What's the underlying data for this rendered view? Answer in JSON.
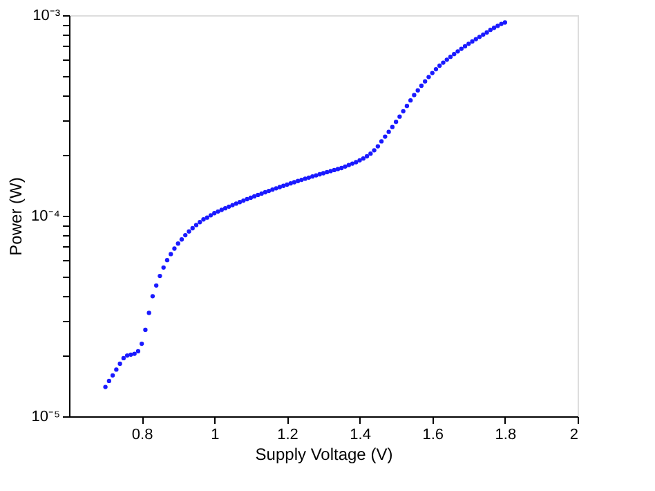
{
  "chart_data": {
    "type": "scatter",
    "xlabel": "Supply Voltage (V)",
    "ylabel": "Power (W)",
    "log": "y",
    "grid": false,
    "marker": "circle",
    "xlim": [
      0.6,
      2
    ],
    "xticks": [
      0.8,
      1,
      1.2,
      1.4,
      1.6,
      1.8,
      2
    ],
    "ylim": [
      1e-05,
      0.001
    ],
    "yticks": [
      {
        "value": 1e-05,
        "label": "10⁻⁵"
      },
      {
        "value": 2e-05,
        "label": null
      },
      {
        "value": 3e-05,
        "label": null
      },
      {
        "value": 4e-05,
        "label": null
      },
      {
        "value": 5e-05,
        "label": null
      },
      {
        "value": 6e-05,
        "label": null
      },
      {
        "value": 7e-05,
        "label": null
      },
      {
        "value": 8e-05,
        "label": null
      },
      {
        "value": 9e-05,
        "label": null
      },
      {
        "value": 0.0001,
        "label": "10⁻⁴"
      },
      {
        "value": 0.0002,
        "label": null
      },
      {
        "value": 0.0003,
        "label": null
      },
      {
        "value": 0.0004,
        "label": null
      },
      {
        "value": 0.0005,
        "label": null
      },
      {
        "value": 0.0006,
        "label": null
      },
      {
        "value": 0.0007,
        "label": null
      },
      {
        "value": 0.0008,
        "label": null
      },
      {
        "value": 0.0009,
        "label": null
      },
      {
        "value": 0.001,
        "label": "10⁻³"
      }
    ],
    "x": [
      0.7,
      0.71,
      0.72,
      0.73,
      0.74,
      0.75,
      0.76,
      0.77,
      0.78,
      0.79,
      0.8,
      0.81,
      0.82,
      0.83,
      0.84,
      0.85,
      0.86,
      0.87,
      0.88,
      0.89,
      0.9,
      0.91,
      0.92,
      0.93,
      0.94,
      0.95,
      0.96,
      0.97,
      0.98,
      0.99,
      1.0,
      1.01,
      1.02,
      1.03,
      1.04,
      1.05,
      1.06,
      1.07,
      1.08,
      1.09,
      1.1,
      1.11,
      1.12,
      1.13,
      1.14,
      1.15,
      1.16,
      1.17,
      1.18,
      1.19,
      1.2,
      1.21,
      1.22,
      1.23,
      1.24,
      1.25,
      1.26,
      1.27,
      1.28,
      1.29,
      1.3,
      1.31,
      1.32,
      1.33,
      1.34,
      1.35,
      1.36,
      1.37,
      1.38,
      1.39,
      1.4,
      1.41,
      1.42,
      1.43,
      1.44,
      1.45,
      1.46,
      1.47,
      1.48,
      1.49,
      1.5,
      1.51,
      1.52,
      1.53,
      1.54,
      1.55,
      1.56,
      1.57,
      1.58,
      1.59,
      1.6,
      1.61,
      1.62,
      1.63,
      1.64,
      1.65,
      1.66,
      1.67,
      1.68,
      1.69,
      1.7,
      1.71,
      1.72,
      1.73,
      1.74,
      1.75,
      1.76,
      1.77,
      1.78,
      1.79,
      1.8
    ],
    "series": [
      {
        "color": "#1a1aff",
        "values": [
          1.4e-05,
          1.5e-05,
          1.6e-05,
          1.71e-05,
          1.83e-05,
          1.95e-05,
          2.01e-05,
          2.03e-05,
          2.05e-05,
          2.11e-05,
          2.3e-05,
          2.7e-05,
          3.28e-05,
          3.97e-05,
          4.49e-05,
          5.01e-05,
          5.52e-05,
          6.01e-05,
          6.44e-05,
          6.86e-05,
          7.27e-05,
          7.62e-05,
          8e-05,
          8.35e-05,
          8.67e-05,
          8.99e-05,
          9.29e-05,
          9.59e-05,
          9.79e-05,
          0.0001005,
          0.000103,
          0.000105,
          0.000107,
          0.000109,
          0.000111,
          0.000113,
          0.000115,
          0.000117,
          0.000119,
          0.000121,
          0.000123,
          0.000125,
          0.000127,
          0.000129,
          0.000131,
          0.000133,
          0.000135,
          0.000137,
          0.000139,
          0.000141,
          0.000143,
          0.000145,
          0.000147,
          0.000149,
          0.000151,
          0.000153,
          0.000155,
          0.000157,
          0.000159,
          0.000161,
          0.000163,
          0.000165,
          0.000167,
          0.000169,
          0.000171,
          0.000173,
          0.000176,
          0.000179,
          0.000182,
          0.000185,
          0.000189,
          0.000193,
          0.000198,
          0.000204,
          0.000212,
          0.000222,
          0.000235,
          0.000248,
          0.000262,
          0.000277,
          0.000294,
          0.000312,
          0.000332,
          0.000353,
          0.000376,
          0.0004,
          0.000422,
          0.000445,
          0.000468,
          0.000492,
          0.000515,
          0.000538,
          0.00056,
          0.00058,
          0.0006,
          0.00062,
          0.00064,
          0.00066,
          0.00068,
          0.0007,
          0.00072,
          0.00074,
          0.00076,
          0.00078,
          0.0008,
          0.00082,
          0.000845,
          0.000865,
          0.000885,
          0.000905,
          0.00092
        ]
      }
    ]
  }
}
